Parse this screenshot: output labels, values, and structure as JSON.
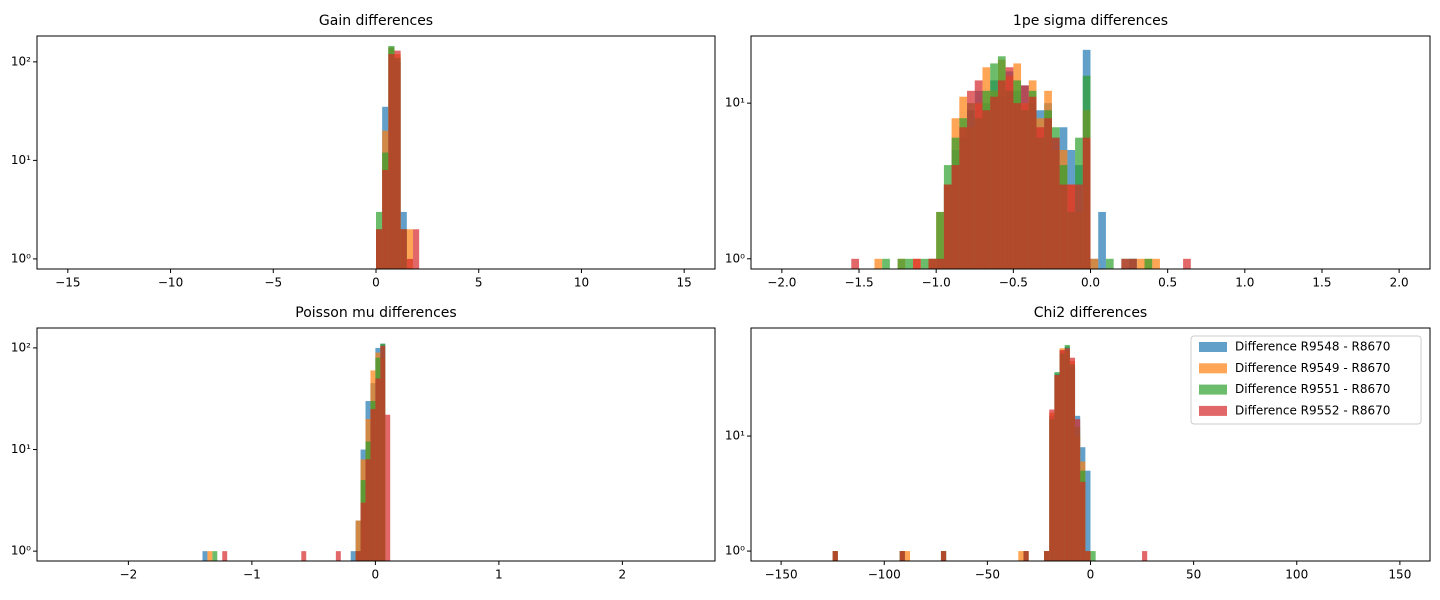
{
  "chart_data": [
    {
      "type": "histogram",
      "title": "Gain differences",
      "log_y": true,
      "alpha": 0.7,
      "bins": [
        0,
        0.3,
        0.6,
        0.9,
        1.2,
        1.5,
        1.8,
        2.1
      ],
      "series": [
        {
          "color": "#1f77b4",
          "values": [
            2,
            35,
            140,
            100,
            3,
            0,
            0
          ]
        },
        {
          "color": "#ff7f0e",
          "values": [
            2,
            20,
            140,
            120,
            2,
            2,
            0
          ]
        },
        {
          "color": "#2ca02c",
          "values": [
            3,
            12,
            145,
            110,
            2,
            0,
            0
          ]
        },
        {
          "color": "#d62728",
          "values": [
            2,
            8,
            120,
            130,
            2,
            1,
            2
          ]
        }
      ],
      "xlim": [
        -16.5,
        16.5
      ],
      "ylim": [
        0.79,
        183
      ],
      "xticks": [
        {
          "value": -15,
          "label": "−15"
        },
        {
          "value": -10,
          "label": "−10"
        },
        {
          "value": -5,
          "label": "−5"
        },
        0,
        5,
        10,
        15
      ],
      "yticks": [
        {
          "value": 1,
          "label": "10⁰"
        },
        {
          "value": 10,
          "label": "10¹"
        },
        {
          "value": 100,
          "label": "10²"
        }
      ]
    },
    {
      "type": "histogram",
      "title": "1pe sigma differences",
      "log_y": true,
      "alpha": 0.7,
      "bins": [
        -1.55,
        -1.5,
        -1.45,
        -1.4,
        -1.35,
        -1.3,
        -1.25,
        -1.2,
        -1.15,
        -1.1,
        -1.05,
        -1,
        -0.95,
        -0.9,
        -0.85,
        -0.8,
        -0.75,
        -0.7,
        -0.65,
        -0.6,
        -0.55,
        -0.5,
        -0.45,
        -0.4,
        -0.35,
        -0.3,
        -0.25,
        -0.2,
        -0.15,
        -0.1,
        -0.05,
        0,
        0.05,
        0.1,
        0.15,
        0.2,
        0.25,
        0.3,
        0.35,
        0.4,
        0.45,
        0.5,
        0.55,
        0.6,
        0.65
      ],
      "series": [
        {
          "color": "#1f77b4",
          "values": [
            0,
            0,
            0,
            0,
            0,
            0,
            0,
            0,
            0,
            0,
            0,
            1,
            3,
            5,
            6,
            9,
            12,
            10,
            14,
            11,
            16,
            12,
            13,
            10,
            9,
            10,
            6,
            7,
            5,
            4,
            22,
            1,
            2,
            0,
            0,
            0,
            1,
            0,
            0,
            0,
            0,
            0,
            0,
            0
          ]
        },
        {
          "color": "#ff7f0e",
          "values": [
            0,
            0,
            0,
            1,
            0,
            0,
            1,
            0,
            1,
            0,
            1,
            2,
            3,
            8,
            11,
            7,
            10,
            17,
            12,
            19,
            15,
            18,
            10,
            14,
            8,
            12,
            5,
            5,
            3,
            2,
            9,
            1,
            0,
            0,
            0,
            0,
            0,
            1,
            1,
            1,
            0,
            0,
            0,
            0
          ]
        },
        {
          "color": "#2ca02c",
          "values": [
            0,
            0,
            0,
            0,
            1,
            0,
            1,
            1,
            0,
            1,
            1,
            2,
            4,
            6,
            8,
            10,
            8,
            12,
            18,
            20,
            12,
            14,
            9,
            12,
            6,
            9,
            7,
            4,
            2,
            6,
            15,
            0,
            0,
            1,
            0,
            1,
            1,
            0,
            1,
            0,
            0,
            0,
            0,
            0
          ]
        },
        {
          "color": "#d62728",
          "values": [
            1,
            0,
            0,
            0,
            0,
            0,
            0,
            0,
            1,
            0,
            1,
            1,
            3,
            4,
            7,
            12,
            14,
            9,
            11,
            14,
            17,
            10,
            13,
            11,
            7,
            8,
            6,
            3,
            3,
            3,
            6,
            0,
            0,
            0,
            0,
            1,
            1,
            0,
            0,
            0,
            0,
            0,
            0,
            1
          ]
        }
      ],
      "xlim": [
        -2.2,
        2.2
      ],
      "ylim": [
        0.86,
        27
      ],
      "xticks": [
        {
          "value": -2,
          "label": "−2.0"
        },
        {
          "value": -1.5,
          "label": "−1.5"
        },
        {
          "value": -1,
          "label": "−1.0"
        },
        {
          "value": -0.5,
          "label": "−0.5"
        },
        {
          "value": 0,
          "label": "0.0"
        },
        0.5,
        {
          "value": 1,
          "label": "1.0"
        },
        1.5,
        {
          "value": 2,
          "label": "2.0"
        }
      ],
      "yticks": [
        {
          "value": 1,
          "label": "10⁰"
        },
        {
          "value": 10,
          "label": "10¹"
        }
      ]
    },
    {
      "type": "histogram",
      "title": "Poisson mu differences",
      "log_y": true,
      "alpha": 0.7,
      "bins": [
        -1.4,
        -1.36,
        -1.32,
        -1.28,
        -1.24,
        -1.2,
        -1.16,
        -1.12,
        -1.08,
        -1.04,
        -1,
        -0.96,
        -0.92,
        -0.88,
        -0.84,
        -0.8,
        -0.76,
        -0.72,
        -0.68,
        -0.64,
        -0.6,
        -0.56,
        -0.52,
        -0.48,
        -0.44,
        -0.4,
        -0.36,
        -0.32,
        -0.28,
        -0.24,
        -0.2,
        -0.16,
        -0.12,
        -0.08,
        -0.04,
        0,
        0.04,
        0.08,
        0.12,
        0.16
      ],
      "series": [
        {
          "color": "#1f77b4",
          "values": [
            1,
            0,
            0,
            0,
            0,
            0,
            0,
            0,
            0,
            0,
            0,
            0,
            0,
            0,
            0,
            0,
            0,
            0,
            0,
            0,
            0,
            0,
            0,
            0,
            0,
            0,
            0,
            0,
            0,
            0,
            1,
            2,
            10,
            30,
            45,
            100,
            110,
            0,
            0
          ]
        },
        {
          "color": "#ff7f0e",
          "values": [
            0,
            1,
            0,
            0,
            0,
            0,
            0,
            0,
            0,
            0,
            0,
            0,
            0,
            0,
            0,
            0,
            0,
            0,
            0,
            0,
            0,
            0,
            0,
            0,
            0,
            0,
            0,
            0,
            0,
            0,
            0,
            2,
            8,
            20,
            60,
            90,
            80,
            0,
            0
          ]
        },
        {
          "color": "#2ca02c",
          "values": [
            0,
            0,
            1,
            0,
            0,
            0,
            0,
            0,
            0,
            0,
            0,
            0,
            0,
            0,
            0,
            0,
            0,
            0,
            0,
            0,
            0,
            0,
            0,
            0,
            0,
            0,
            0,
            0,
            0,
            0,
            0,
            1,
            5,
            12,
            30,
            80,
            110,
            0,
            0
          ]
        },
        {
          "color": "#d62728",
          "values": [
            0,
            0,
            0,
            0,
            1,
            0,
            0,
            0,
            0,
            0,
            0,
            0,
            0,
            0,
            0,
            0,
            0,
            0,
            0,
            0,
            1,
            0,
            0,
            0,
            0,
            0,
            0,
            1,
            0,
            0,
            0,
            1,
            3,
            8,
            25,
            50,
            105,
            22,
            0
          ]
        }
      ],
      "xlim": [
        -2.74,
        2.75
      ],
      "ylim": [
        0.8,
        157
      ],
      "xticks": [
        {
          "value": -2,
          "label": "−2"
        },
        {
          "value": -1,
          "label": "−1"
        },
        0,
        1,
        2
      ],
      "yticks": [
        {
          "value": 1,
          "label": "10⁰"
        },
        {
          "value": 10,
          "label": "10¹"
        },
        {
          "value": 100,
          "label": "10²"
        }
      ]
    },
    {
      "type": "histogram",
      "title": "Chi2 differences",
      "log_y": true,
      "alpha": 0.7,
      "legend": "upper right",
      "bins": [
        -125,
        -122.5,
        -120,
        -117.5,
        -115,
        -112.5,
        -110,
        -107.5,
        -105,
        -102.5,
        -100,
        -97.5,
        -95,
        -92.5,
        -90,
        -87.5,
        -85,
        -82.5,
        -80,
        -77.5,
        -75,
        -72.5,
        -70,
        -67.5,
        -65,
        -62.5,
        -60,
        -57.5,
        -55,
        -52.5,
        -50,
        -47.5,
        -45,
        -42.5,
        -40,
        -37.5,
        -35,
        -32.5,
        -30,
        -27.5,
        -25,
        -22.5,
        -20,
        -17.5,
        -15,
        -12.5,
        -10,
        -7.5,
        -5,
        -2.5,
        0,
        2.5,
        5,
        7.5,
        10,
        12.5,
        15,
        17.5,
        20,
        22.5,
        25,
        27.5
      ],
      "series": [
        {
          "name": "Difference R9548 - R8670",
          "color": "#1f77b4",
          "values": [
            1,
            0,
            0,
            0,
            0,
            0,
            0,
            0,
            0,
            0,
            0,
            0,
            0,
            1,
            0,
            0,
            0,
            0,
            0,
            0,
            0,
            1,
            0,
            0,
            0,
            0,
            0,
            0,
            0,
            0,
            0,
            0,
            0,
            0,
            0,
            0,
            0,
            1,
            0,
            0,
            0,
            1,
            15,
            35,
            55,
            60,
            40,
            15,
            8,
            5,
            0,
            0,
            0,
            0,
            0,
            0,
            0,
            0,
            0,
            0,
            0
          ]
        },
        {
          "name": "Difference R9549 - R8670",
          "color": "#ff7f0e",
          "values": [
            1,
            0,
            0,
            0,
            0,
            0,
            0,
            0,
            0,
            0,
            0,
            0,
            0,
            1,
            1,
            0,
            0,
            0,
            0,
            0,
            0,
            1,
            0,
            0,
            0,
            0,
            0,
            0,
            0,
            0,
            0,
            0,
            0,
            0,
            0,
            0,
            1,
            1,
            0,
            0,
            0,
            1,
            16,
            33,
            58,
            55,
            45,
            10,
            6,
            1,
            0,
            0,
            0,
            0,
            0,
            0,
            0,
            0,
            0,
            0,
            0
          ]
        },
        {
          "name": "Difference R9551 - R8670",
          "color": "#2ca02c",
          "values": [
            1,
            0,
            0,
            0,
            0,
            0,
            0,
            0,
            0,
            0,
            0,
            0,
            0,
            1,
            0,
            0,
            0,
            0,
            0,
            0,
            0,
            1,
            0,
            0,
            0,
            0,
            0,
            0,
            0,
            0,
            0,
            0,
            0,
            0,
            0,
            0,
            0,
            1,
            0,
            0,
            0,
            1,
            14,
            36,
            52,
            62,
            42,
            12,
            5,
            1,
            1,
            0,
            0,
            0,
            0,
            0,
            0,
            0,
            0,
            0,
            0
          ]
        },
        {
          "name": "Difference R9552 - R8670",
          "color": "#d62728",
          "values": [
            1,
            0,
            0,
            0,
            0,
            0,
            0,
            0,
            0,
            0,
            0,
            0,
            0,
            1,
            0,
            0,
            0,
            0,
            0,
            0,
            0,
            1,
            0,
            0,
            0,
            0,
            0,
            0,
            0,
            0,
            0,
            0,
            0,
            0,
            0,
            0,
            0,
            1,
            0,
            0,
            0,
            1,
            17,
            34,
            56,
            58,
            48,
            14,
            4,
            1,
            0,
            0,
            0,
            0,
            0,
            0,
            0,
            0,
            0,
            0,
            1
          ]
        }
      ],
      "xlim": [
        -164.6,
        164.6
      ],
      "ylim": [
        0.82,
        87
      ],
      "xticks": [
        {
          "value": -150,
          "label": "−150"
        },
        {
          "value": -100,
          "label": "−100"
        },
        {
          "value": -50,
          "label": "−50"
        },
        0,
        50,
        100,
        150
      ],
      "yticks": [
        {
          "value": 1,
          "label": "10⁰"
        },
        {
          "value": 10,
          "label": "10¹"
        }
      ]
    }
  ]
}
